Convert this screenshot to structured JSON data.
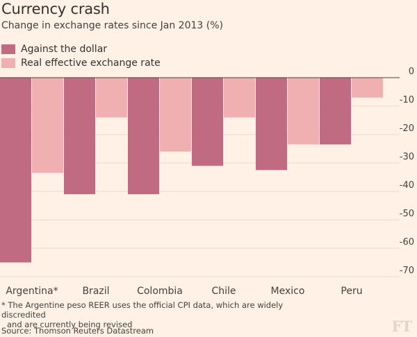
{
  "header": {
    "title": "Currency crash",
    "subtitle": "Change in exchange rates since Jan 2013 (%)"
  },
  "legend": [
    {
      "label": "Against the dollar",
      "color": "#c06b82"
    },
    {
      "label": "Real effective exchange rate",
      "color": "#f0afb0"
    }
  ],
  "footnote": {
    "line1": "* The Argentine peso REER uses the official CPI data, which are widely discredited",
    "line2": "and are currently being revised"
  },
  "source": "Source: Thomson Reuters Datastream",
  "branding": {
    "logo": "FT"
  },
  "chart_data": {
    "type": "bar",
    "title": "Currency crash",
    "subtitle": "Change in exchange rates since Jan 2013 (%)",
    "categories": [
      "Argentina*",
      "Brazil",
      "Colombia",
      "Chile",
      "Mexico",
      "Peru"
    ],
    "series": [
      {
        "name": "Against the dollar",
        "color": "#c06b82",
        "values": [
          -65,
          -41,
          -41,
          -31,
          -32.5,
          -23.5
        ]
      },
      {
        "name": "Real effective exchange rate",
        "color": "#f0afb0",
        "values": [
          -33.5,
          -14,
          -26,
          -14,
          -23.5,
          -7
        ]
      }
    ],
    "yticks": [
      0,
      -10,
      -20,
      -30,
      -40,
      -50,
      -60,
      -70
    ],
    "ylim": [
      -70,
      0
    ],
    "grid": true,
    "legend_position": "top-left",
    "y_axis_side": "right"
  }
}
